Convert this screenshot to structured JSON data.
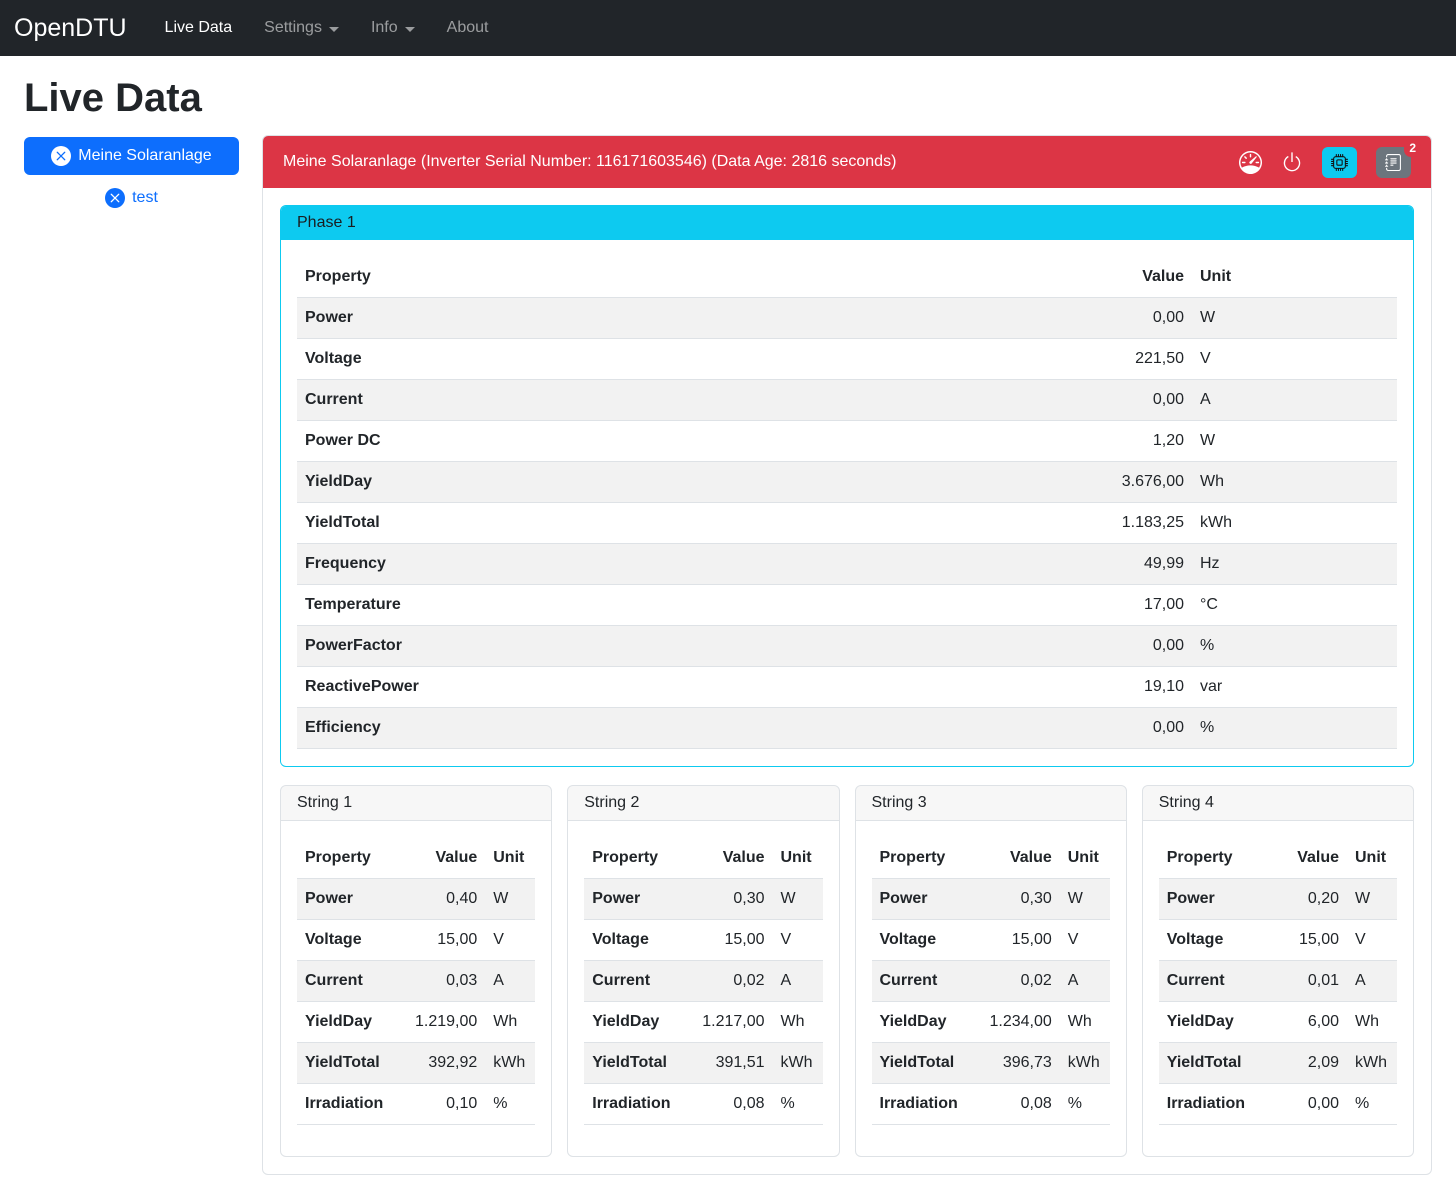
{
  "theme": {
    "navbar-bg": "#212529",
    "danger": "#dc3545",
    "info": "#0dcaf0",
    "primary": "#0d6efd",
    "secondary": "#6c757d"
  },
  "navbar": {
    "brand": "OpenDTU",
    "items": [
      {
        "label": "Live Data"
      },
      {
        "label": "Settings"
      },
      {
        "label": "Info"
      },
      {
        "label": "About"
      }
    ]
  },
  "page_title": "Live Data",
  "inverter_selector": {
    "selected_label": "Meine Solaranlage",
    "other_label": "test"
  },
  "inverter_card": {
    "header_title": "Meine Solaranlage (Inverter Serial Number: 116171603546) (Data Age: 2816 seconds)",
    "events_badge_count": "2"
  },
  "phase": {
    "title": "Phase 1",
    "columns": [
      "Property",
      "Value",
      "Unit"
    ],
    "rows": [
      [
        "Power",
        "0,00",
        "W"
      ],
      [
        "Voltage",
        "221,50",
        "V"
      ],
      [
        "Current",
        "0,00",
        "A"
      ],
      [
        "Power DC",
        "1,20",
        "W"
      ],
      [
        "YieldDay",
        "3.676,00",
        "Wh"
      ],
      [
        "YieldTotal",
        "1.183,25",
        "kWh"
      ],
      [
        "Frequency",
        "49,99",
        "Hz"
      ],
      [
        "Temperature",
        "17,00",
        "°C"
      ],
      [
        "PowerFactor",
        "0,00",
        "%"
      ],
      [
        "ReactivePower",
        "19,10",
        "var"
      ],
      [
        "Efficiency",
        "0,00",
        "%"
      ]
    ]
  },
  "strings": [
    {
      "title": "String 1",
      "columns": [
        "Property",
        "Value",
        "Unit"
      ],
      "rows": [
        [
          "Power",
          "0,40",
          "W"
        ],
        [
          "Voltage",
          "15,00",
          "V"
        ],
        [
          "Current",
          "0,03",
          "A"
        ],
        [
          "YieldDay",
          "1.219,00",
          "Wh"
        ],
        [
          "YieldTotal",
          "392,92",
          "kWh"
        ],
        [
          "Irradiation",
          "0,10",
          "%"
        ]
      ]
    },
    {
      "title": "String 2",
      "columns": [
        "Property",
        "Value",
        "Unit"
      ],
      "rows": [
        [
          "Power",
          "0,30",
          "W"
        ],
        [
          "Voltage",
          "15,00",
          "V"
        ],
        [
          "Current",
          "0,02",
          "A"
        ],
        [
          "YieldDay",
          "1.217,00",
          "Wh"
        ],
        [
          "YieldTotal",
          "391,51",
          "kWh"
        ],
        [
          "Irradiation",
          "0,08",
          "%"
        ]
      ]
    },
    {
      "title": "String 3",
      "columns": [
        "Property",
        "Value",
        "Unit"
      ],
      "rows": [
        [
          "Power",
          "0,30",
          "W"
        ],
        [
          "Voltage",
          "15,00",
          "V"
        ],
        [
          "Current",
          "0,02",
          "A"
        ],
        [
          "YieldDay",
          "1.234,00",
          "Wh"
        ],
        [
          "YieldTotal",
          "396,73",
          "kWh"
        ],
        [
          "Irradiation",
          "0,08",
          "%"
        ]
      ]
    },
    {
      "title": "String 4",
      "columns": [
        "Property",
        "Value",
        "Unit"
      ],
      "rows": [
        [
          "Power",
          "0,20",
          "W"
        ],
        [
          "Voltage",
          "15,00",
          "V"
        ],
        [
          "Current",
          "0,01",
          "A"
        ],
        [
          "YieldDay",
          "6,00",
          "Wh"
        ],
        [
          "YieldTotal",
          "2,09",
          "kWh"
        ],
        [
          "Irradiation",
          "0,00",
          "%"
        ]
      ]
    }
  ]
}
